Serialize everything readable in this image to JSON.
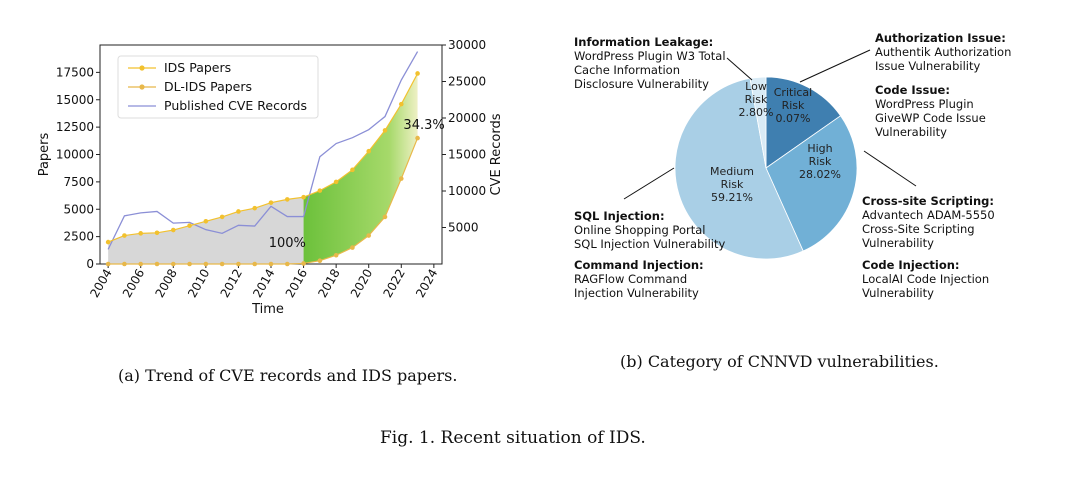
{
  "figure_caption": "Fig. 1.  Recent situation of IDS.",
  "panels": {
    "a": {
      "caption": "(a)  Trend of CVE records and IDS papers."
    },
    "b": {
      "caption": "(b)  Category of CNNVD vulnerabilities."
    }
  },
  "chart_data": [
    {
      "type": "line",
      "xlabel": "Time",
      "ylabel": "Papers",
      "y2label": "CVE Records",
      "xlim": [
        2003.5,
        2024.5
      ],
      "ylim": [
        0,
        20000
      ],
      "y2lim": [
        0,
        30000
      ],
      "xticks": [
        "2004",
        "2006",
        "2008",
        "2010",
        "2012",
        "2014",
        "2016",
        "2018",
        "2020",
        "2022",
        "2024"
      ],
      "yticks": [
        "0",
        "2500",
        "5000",
        "7500",
        "10000",
        "12500",
        "15000",
        "17500"
      ],
      "y2ticks": [
        "5000",
        "10000",
        "15000",
        "20000",
        "25000",
        "30000"
      ],
      "legend_position": "upper-left",
      "colors": {
        "ids": "#f2c12e",
        "dlids": "#e8b84a",
        "cve": "#8b8fd6",
        "gray_fill": "#d0d0d0",
        "green_fill": "#6cc13b"
      },
      "annotations": [
        {
          "text": "100%",
          "x": 2015.0,
          "y": 2000
        },
        {
          "text": "34.3%",
          "x": 2023.4,
          "y": 12800
        }
      ],
      "series": [
        {
          "name": "IDS Papers",
          "axis": "left",
          "x": [
            2004,
            2005,
            2006,
            2007,
            2008,
            2009,
            2010,
            2011,
            2012,
            2013,
            2014,
            2015,
            2016,
            2017,
            2018,
            2019,
            2020,
            2021,
            2022,
            2023
          ],
          "values": [
            2000,
            2600,
            2800,
            2850,
            3100,
            3500,
            3900,
            4300,
            4800,
            5100,
            5600,
            5900,
            6100,
            6700,
            7500,
            8600,
            10300,
            12200,
            14600,
            17400
          ]
        },
        {
          "name": "DL-IDS Papers",
          "axis": "left",
          "x": [
            2004,
            2005,
            2006,
            2007,
            2008,
            2009,
            2010,
            2011,
            2012,
            2013,
            2014,
            2015,
            2016,
            2017,
            2018,
            2019,
            2020,
            2021,
            2022,
            2023
          ],
          "values": [
            0,
            0,
            0,
            0,
            0,
            0,
            0,
            0,
            0,
            0,
            0,
            0,
            50,
            300,
            800,
            1500,
            2600,
            4300,
            7800,
            11500
          ]
        },
        {
          "name": "Published CVE Records",
          "axis": "right",
          "x": [
            2004,
            2005,
            2006,
            2007,
            2008,
            2009,
            2010,
            2011,
            2012,
            2013,
            2014,
            2015,
            2016,
            2017,
            2018,
            2019,
            2020,
            2021,
            2022,
            2023
          ],
          "values": [
            2000,
            6600,
            7000,
            7200,
            5600,
            5700,
            4700,
            4200,
            5300,
            5200,
            7900,
            6500,
            6500,
            14700,
            16500,
            17300,
            18400,
            20200,
            25200,
            29100
          ]
        }
      ]
    },
    {
      "type": "pie",
      "slices": [
        {
          "label": "Critical Risk",
          "pct": "0.07%",
          "value": 0.07,
          "color": "#3f7fb0"
        },
        {
          "label": "High Risk",
          "pct": "28.02%",
          "value": 28.02,
          "color": "#71b0d6"
        },
        {
          "label": "Medium Risk",
          "pct": "59.21%",
          "value": 59.21,
          "color": "#a9cfe6"
        },
        {
          "label": "Low Risk",
          "pct": "2.80%",
          "value": 2.8,
          "color": "#d9ebf6"
        }
      ],
      "callouts": [
        {
          "heading": "Information Leakage:",
          "lines": [
            "WordPress Plugin W3 Total",
            "Cache Information",
            "Disclosure Vulnerability"
          ]
        },
        {
          "heading": "Authorization Issue:",
          "lines": [
            "Authentik Authorization",
            "Issue Vulnerability"
          ]
        },
        {
          "heading": "Code Issue:",
          "lines": [
            "WordPress Plugin",
            "GiveWP Code Issue",
            "Vulnerability"
          ]
        },
        {
          "heading": "Cross-site Scripting:",
          "lines": [
            "Advantech ADAM-5550",
            "Cross-Site Scripting",
            "Vulnerability"
          ]
        },
        {
          "heading": "SQL Injection:",
          "lines": [
            "Online Shopping Portal",
            "SQL Injection Vulnerability"
          ]
        },
        {
          "heading": "Command Injection:",
          "lines": [
            "RAGFlow Command",
            "Injection Vulnerability"
          ]
        },
        {
          "heading": "Code Injection:",
          "lines": [
            "LocalAI Code Injection",
            "Vulnerability"
          ]
        }
      ]
    }
  ]
}
